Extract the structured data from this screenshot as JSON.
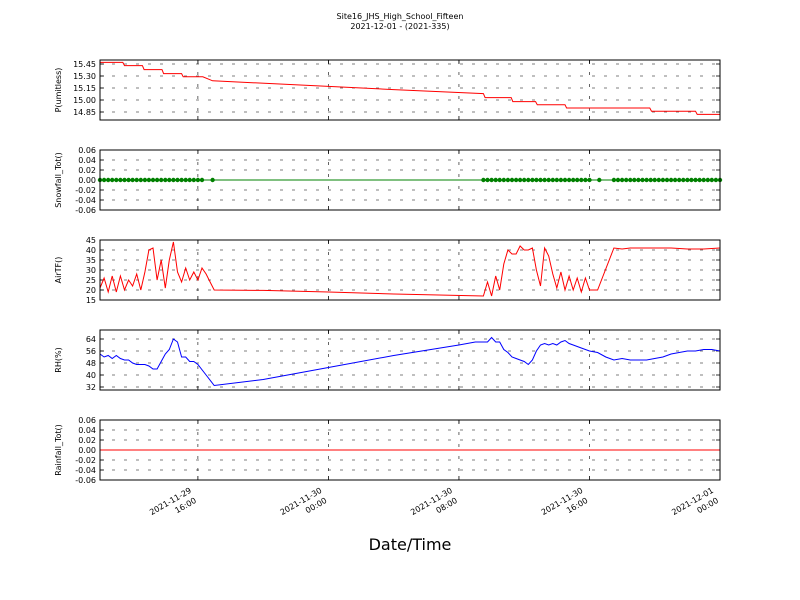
{
  "title": {
    "line1": "Site16_JHS_High_School_Fifteen",
    "line2": "2021-12-01 - (2021-335)"
  },
  "xlabel": "Date/Time",
  "x_ticks": [
    {
      "t": 16,
      "line1": "2021-11-29",
      "line2": "16:00"
    },
    {
      "t": 24,
      "line1": "2021-11-30",
      "line2": "00:00"
    },
    {
      "t": 32,
      "line1": "2021-11-30",
      "line2": "08:00"
    },
    {
      "t": 40,
      "line1": "2021-11-30",
      "line2": "16:00"
    },
    {
      "t": 48,
      "line1": "2021-12-01",
      "line2": "00:00"
    }
  ],
  "chart_data": [
    {
      "type": "line",
      "ylabel": "P(umitless)",
      "color": "#ff0000",
      "ylim": [
        14.75,
        15.5
      ],
      "yticks": [
        "15.45",
        "15.30",
        "15.15",
        "15.00",
        "14.85"
      ],
      "ytick_values": [
        15.45,
        15.3,
        15.15,
        15.0,
        14.85
      ],
      "points": [
        [
          10,
          15.47
        ],
        [
          11.4,
          15.47
        ],
        [
          11.5,
          15.43
        ],
        [
          12.6,
          15.43
        ],
        [
          12.7,
          15.38
        ],
        [
          13.8,
          15.38
        ],
        [
          13.9,
          15.33
        ],
        [
          15,
          15.33
        ],
        [
          15.1,
          15.29
        ],
        [
          16.3,
          15.29
        ],
        [
          16.9,
          15.24
        ],
        [
          24,
          15.17
        ],
        [
          28,
          15.13
        ],
        [
          33.5,
          15.08
        ],
        [
          33.6,
          15.03
        ],
        [
          35.2,
          15.03
        ],
        [
          35.3,
          14.98
        ],
        [
          36.7,
          14.98
        ],
        [
          36.8,
          14.94
        ],
        [
          38.5,
          14.94
        ],
        [
          38.6,
          14.9
        ],
        [
          43.7,
          14.9
        ],
        [
          43.8,
          14.86
        ],
        [
          46.5,
          14.86
        ],
        [
          46.6,
          14.82
        ],
        [
          48,
          14.82
        ]
      ]
    },
    {
      "type": "line",
      "ylabel": "Snowfall_Tot()",
      "color": "#008000",
      "ylim": [
        -0.06,
        0.06
      ],
      "yticks": [
        "0.06",
        "0.04",
        "0.02",
        "0.00",
        "-0.02",
        "-0.04",
        "-0.06"
      ],
      "ytick_values": [
        0.06,
        0.04,
        0.02,
        0.0,
        -0.02,
        -0.04,
        -0.06
      ],
      "points": [
        [
          10,
          0
        ],
        [
          48,
          0
        ]
      ],
      "marker_ranges": [
        [
          10,
          16.3
        ],
        [
          33.5,
          40
        ],
        [
          41.5,
          48
        ]
      ],
      "marker_singles": [
        16.9,
        40.6
      ]
    },
    {
      "type": "line",
      "ylabel": "AirTF()",
      "color": "#ff0000",
      "ylim": [
        15,
        45
      ],
      "yticks": [
        "45",
        "40",
        "35",
        "30",
        "25",
        "20",
        "15"
      ],
      "ytick_values": [
        45,
        40,
        35,
        30,
        25,
        20,
        15
      ],
      "points": [
        [
          10,
          21
        ],
        [
          10.25,
          26
        ],
        [
          10.5,
          19
        ],
        [
          10.75,
          27
        ],
        [
          11,
          19
        ],
        [
          11.25,
          27
        ],
        [
          11.5,
          20
        ],
        [
          11.75,
          25
        ],
        [
          12,
          22
        ],
        [
          12.25,
          28
        ],
        [
          12.5,
          20
        ],
        [
          12.75,
          29
        ],
        [
          13,
          40
        ],
        [
          13.25,
          41
        ],
        [
          13.5,
          25
        ],
        [
          13.75,
          35
        ],
        [
          14,
          21
        ],
        [
          14.25,
          35
        ],
        [
          14.5,
          44
        ],
        [
          14.75,
          29
        ],
        [
          15,
          24
        ],
        [
          15.25,
          31
        ],
        [
          15.5,
          25
        ],
        [
          15.75,
          29
        ],
        [
          16,
          25
        ],
        [
          16.25,
          31
        ],
        [
          16.5,
          28
        ],
        [
          16.75,
          24
        ],
        [
          17,
          20
        ],
        [
          20,
          19.8
        ],
        [
          24,
          19
        ],
        [
          28,
          18
        ],
        [
          33.5,
          17
        ],
        [
          33.75,
          24
        ],
        [
          34,
          17
        ],
        [
          34.25,
          27
        ],
        [
          34.5,
          20
        ],
        [
          34.75,
          33
        ],
        [
          35,
          40
        ],
        [
          35.25,
          38
        ],
        [
          35.5,
          38
        ],
        [
          35.75,
          42
        ],
        [
          36,
          40
        ],
        [
          36.25,
          40
        ],
        [
          36.5,
          41
        ],
        [
          36.75,
          30
        ],
        [
          37,
          22
        ],
        [
          37.25,
          41
        ],
        [
          37.5,
          37
        ],
        [
          37.75,
          28
        ],
        [
          38,
          21
        ],
        [
          38.25,
          29
        ],
        [
          38.5,
          20
        ],
        [
          38.75,
          27
        ],
        [
          39,
          20
        ],
        [
          39.25,
          26
        ],
        [
          39.5,
          19
        ],
        [
          39.75,
          26
        ],
        [
          40,
          20
        ],
        [
          40.5,
          20
        ],
        [
          41.5,
          41
        ],
        [
          42,
          40.5
        ],
        [
          42.5,
          41
        ],
        [
          44,
          41
        ],
        [
          45,
          41
        ],
        [
          46,
          40.5
        ],
        [
          47,
          40.5
        ],
        [
          48,
          41
        ]
      ]
    },
    {
      "type": "line",
      "ylabel": "RH(%)",
      "color": "#0000ff",
      "ylim": [
        30,
        70
      ],
      "yticks": [
        "64",
        "56",
        "48",
        "40",
        "32"
      ],
      "ytick_values": [
        64,
        56,
        48,
        40,
        32
      ],
      "points": [
        [
          10,
          54
        ],
        [
          10.25,
          52
        ],
        [
          10.5,
          53
        ],
        [
          10.75,
          51
        ],
        [
          11,
          53
        ],
        [
          11.25,
          51
        ],
        [
          11.5,
          50
        ],
        [
          11.75,
          50
        ],
        [
          12,
          48
        ],
        [
          12.25,
          47
        ],
        [
          12.5,
          47
        ],
        [
          12.75,
          47
        ],
        [
          13,
          46
        ],
        [
          13.25,
          44
        ],
        [
          13.5,
          44
        ],
        [
          13.75,
          49
        ],
        [
          14,
          54
        ],
        [
          14.25,
          57
        ],
        [
          14.5,
          64
        ],
        [
          14.75,
          62
        ],
        [
          15,
          52
        ],
        [
          15.25,
          52
        ],
        [
          15.5,
          49
        ],
        [
          15.75,
          49
        ],
        [
          16,
          47
        ],
        [
          16.5,
          40
        ],
        [
          17,
          33
        ],
        [
          20,
          37
        ],
        [
          24,
          45
        ],
        [
          28,
          53
        ],
        [
          32,
          60
        ],
        [
          33,
          62
        ],
        [
          33.5,
          62
        ],
        [
          33.75,
          62
        ],
        [
          34,
          65
        ],
        [
          34.25,
          62
        ],
        [
          34.5,
          62
        ],
        [
          34.75,
          57
        ],
        [
          35,
          55
        ],
        [
          35.25,
          52
        ],
        [
          35.5,
          51
        ],
        [
          35.75,
          50
        ],
        [
          36,
          49
        ],
        [
          36.25,
          47
        ],
        [
          36.5,
          50
        ],
        [
          36.75,
          56
        ],
        [
          37,
          60
        ],
        [
          37.25,
          61
        ],
        [
          37.5,
          60
        ],
        [
          37.75,
          61
        ],
        [
          38,
          60
        ],
        [
          38.25,
          62
        ],
        [
          38.5,
          63
        ],
        [
          38.75,
          61
        ],
        [
          39,
          60
        ],
        [
          39.5,
          58
        ],
        [
          40,
          56
        ],
        [
          40.5,
          55
        ],
        [
          41,
          52
        ],
        [
          41.5,
          50
        ],
        [
          42,
          51
        ],
        [
          42.5,
          50
        ],
        [
          43,
          50
        ],
        [
          43.5,
          50
        ],
        [
          44,
          51
        ],
        [
          44.5,
          52
        ],
        [
          45,
          54
        ],
        [
          45.5,
          55
        ],
        [
          46,
          56
        ],
        [
          46.5,
          56
        ],
        [
          47,
          57
        ],
        [
          47.5,
          57
        ],
        [
          48,
          56
        ]
      ]
    },
    {
      "type": "line",
      "ylabel": "Rainfall_Tot()",
      "color": "#ff0000",
      "ylim": [
        -0.06,
        0.06
      ],
      "yticks": [
        "0.06",
        "0.04",
        "0.02",
        "0.00",
        "-0.02",
        "-0.04",
        "-0.06"
      ],
      "ytick_values": [
        0.06,
        0.04,
        0.02,
        0.0,
        -0.02,
        -0.04,
        -0.06
      ],
      "points": [
        [
          10,
          0
        ],
        [
          48,
          0
        ]
      ]
    }
  ]
}
